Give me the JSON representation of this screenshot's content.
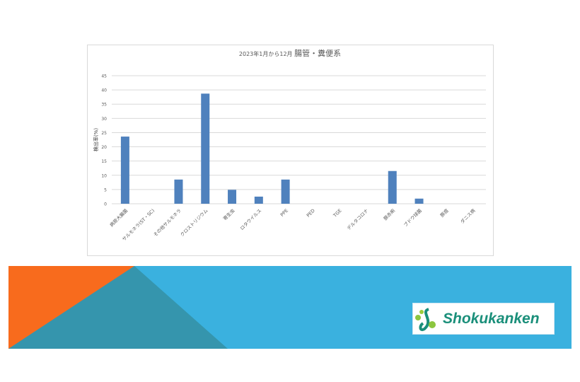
{
  "chart_data": {
    "type": "bar",
    "title_prefix": "2023年1月から12月",
    "title_main": "腸管・糞便系",
    "ylabel": "検出率(%)",
    "xlabel": "",
    "ylim": [
      0,
      45
    ],
    "yticks": [
      0,
      5,
      10,
      15,
      20,
      25,
      30,
      35,
      40,
      45
    ],
    "grid": true,
    "categories": [
      "病原大腸菌",
      "サルモネラ(ST・SC)",
      "その他サルモネラ",
      "クロストリジウム",
      "寄生虫",
      "ロタウイルス",
      "PPE",
      "PED",
      "TGE",
      "デルタコロナ",
      "豚赤痢",
      "ブドウ球菌",
      "豚痘",
      "ダニス病"
    ],
    "values": [
      23.6,
      0,
      8.5,
      38.7,
      4.9,
      2.5,
      8.5,
      0,
      0,
      0,
      11.5,
      1.8,
      0,
      0
    ],
    "bar_color": "#4f81bd"
  },
  "banner": {
    "colors": {
      "blue": "#3ab1df",
      "orange": "#f86b1d",
      "teal": "#3595ad"
    }
  },
  "logo": {
    "text": "Shokukanken"
  }
}
